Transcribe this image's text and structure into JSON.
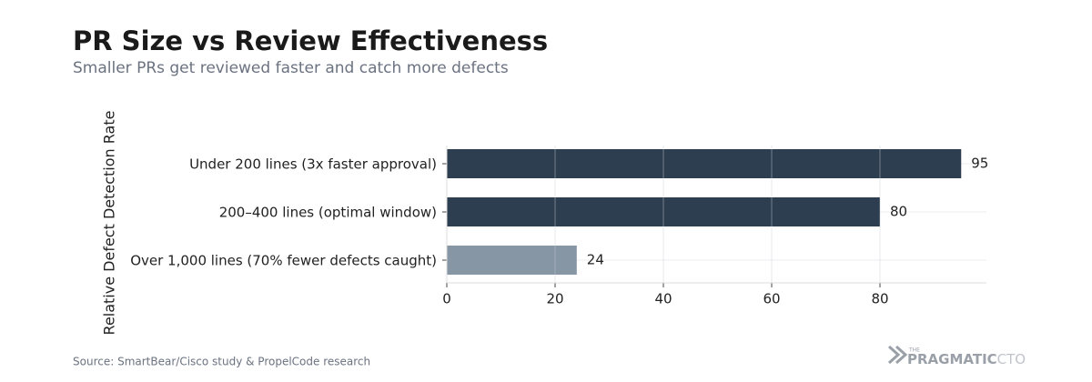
{
  "chart_data": {
    "type": "barh",
    "title": "PR Size vs Review Effectiveness",
    "subtitle": "Smaller PRs get reviewed faster and catch more defects",
    "y_label": "Relative Defect Detection Rate",
    "categories": [
      "Under 200 lines (3x faster approval)",
      "200–400 lines (optimal window)",
      "Over 1,000 lines (70% fewer defects caught)"
    ],
    "values": [
      95,
      80,
      24
    ],
    "colors": [
      "#2d3e50",
      "#2d3e50",
      "#8796a5"
    ],
    "xlim": [
      0,
      100
    ],
    "xticks": [
      0,
      20,
      40,
      60,
      80
    ],
    "grid": true,
    "source": "Source: SmartBear/Cisco study & PropelCode research",
    "logo": {
      "small": "THE",
      "main": "PRAGMATIC",
      "accent": "CTO"
    }
  }
}
